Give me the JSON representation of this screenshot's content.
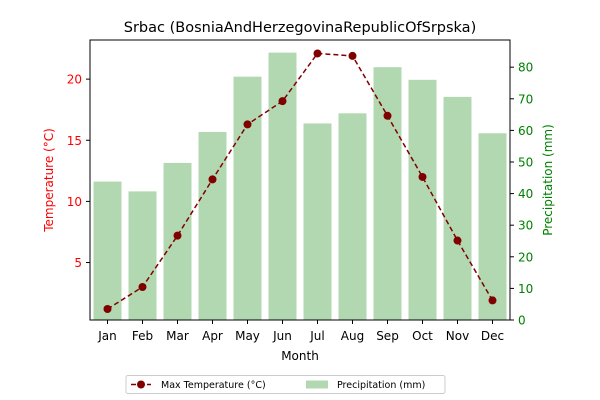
{
  "chart_data": {
    "type": "bar",
    "title": "Srbac (BosniaAndHerzegovinaRepublicOfSrpska)",
    "xlabel": "Month",
    "ylabel_left": "Temperature (°C)",
    "ylabel_right": "Precipitation (mm)",
    "categories": [
      "Jan",
      "Feb",
      "Mar",
      "Apr",
      "May",
      "Jun",
      "Jul",
      "Aug",
      "Sep",
      "Oct",
      "Nov",
      "Dec"
    ],
    "ylim_left": [
      0.3,
      23.2
    ],
    "ylim_right": [
      0,
      88.6
    ],
    "yticks_left": [
      5,
      10,
      15,
      20
    ],
    "yticks_right": [
      0,
      10,
      20,
      30,
      40,
      50,
      60,
      70,
      80
    ],
    "grid": false,
    "legend_position": "bottom-center",
    "series": [
      {
        "name": "Max Temperature (°C)",
        "kind": "line",
        "axis": "left",
        "color": "#800000",
        "style": "dashed",
        "marker": "circle",
        "values": [
          1.2,
          3.0,
          7.2,
          11.8,
          16.3,
          18.2,
          22.1,
          21.9,
          17.0,
          12.0,
          6.8,
          1.9
        ]
      },
      {
        "name": "Precipitation (mm)",
        "kind": "bar",
        "axis": "right",
        "color": "#b2d8b2",
        "values": [
          43.8,
          40.7,
          49.7,
          59.5,
          77.0,
          84.6,
          62.2,
          65.4,
          80.0,
          76.0,
          70.6,
          59.1
        ]
      }
    ],
    "colors": {
      "left_axis": "#ff0000",
      "right_axis": "#008000",
      "text": "#000000"
    }
  }
}
